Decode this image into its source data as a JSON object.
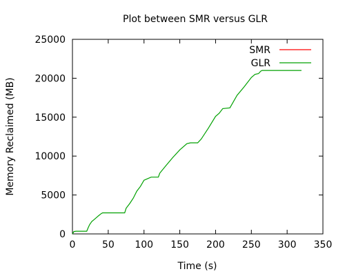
{
  "chart_data": {
    "type": "line",
    "title": "Plot between SMR versus GLR",
    "xlabel": "Time (s)",
    "ylabel": "Memory Reclaimed (MB)",
    "xlim": [
      0,
      350
    ],
    "ylim": [
      0,
      25000
    ],
    "xticks": [
      0,
      50,
      100,
      150,
      200,
      250,
      300,
      350
    ],
    "yticks": [
      0,
      5000,
      10000,
      15000,
      20000,
      25000
    ],
    "xtick_labels": [
      "0",
      "50",
      "100",
      "150",
      "200",
      "250",
      "300",
      "350"
    ],
    "ytick_labels": [
      "0",
      "5000",
      "10000",
      "15000",
      "20000",
      "25000"
    ],
    "grid": false,
    "legend_position": "top-right",
    "series": [
      {
        "name": "SMR",
        "color": "#ff0000",
        "x": [],
        "y": []
      },
      {
        "name": "GLR",
        "color": "#00a000",
        "x": [
          0,
          2,
          5,
          20,
          22,
          24,
          27,
          31,
          36,
          40,
          42,
          73,
          75,
          80,
          85,
          90,
          95,
          100,
          105,
          110,
          120,
          122,
          130,
          140,
          150,
          160,
          165,
          175,
          180,
          190,
          200,
          205,
          210,
          220,
          230,
          240,
          250,
          255,
          260,
          263,
          265,
          270,
          280,
          300,
          320
        ],
        "y": [
          0,
          300,
          350,
          350,
          800,
          1200,
          1600,
          1900,
          2300,
          2600,
          2700,
          2700,
          3300,
          3900,
          4600,
          5500,
          6100,
          6900,
          7100,
          7300,
          7300,
          7800,
          8700,
          9800,
          10800,
          11600,
          11700,
          11700,
          12200,
          13600,
          15100,
          15500,
          16100,
          16200,
          17800,
          18900,
          20100,
          20500,
          20600,
          20900,
          21000,
          21000,
          21000,
          21000,
          21000
        ]
      }
    ]
  }
}
